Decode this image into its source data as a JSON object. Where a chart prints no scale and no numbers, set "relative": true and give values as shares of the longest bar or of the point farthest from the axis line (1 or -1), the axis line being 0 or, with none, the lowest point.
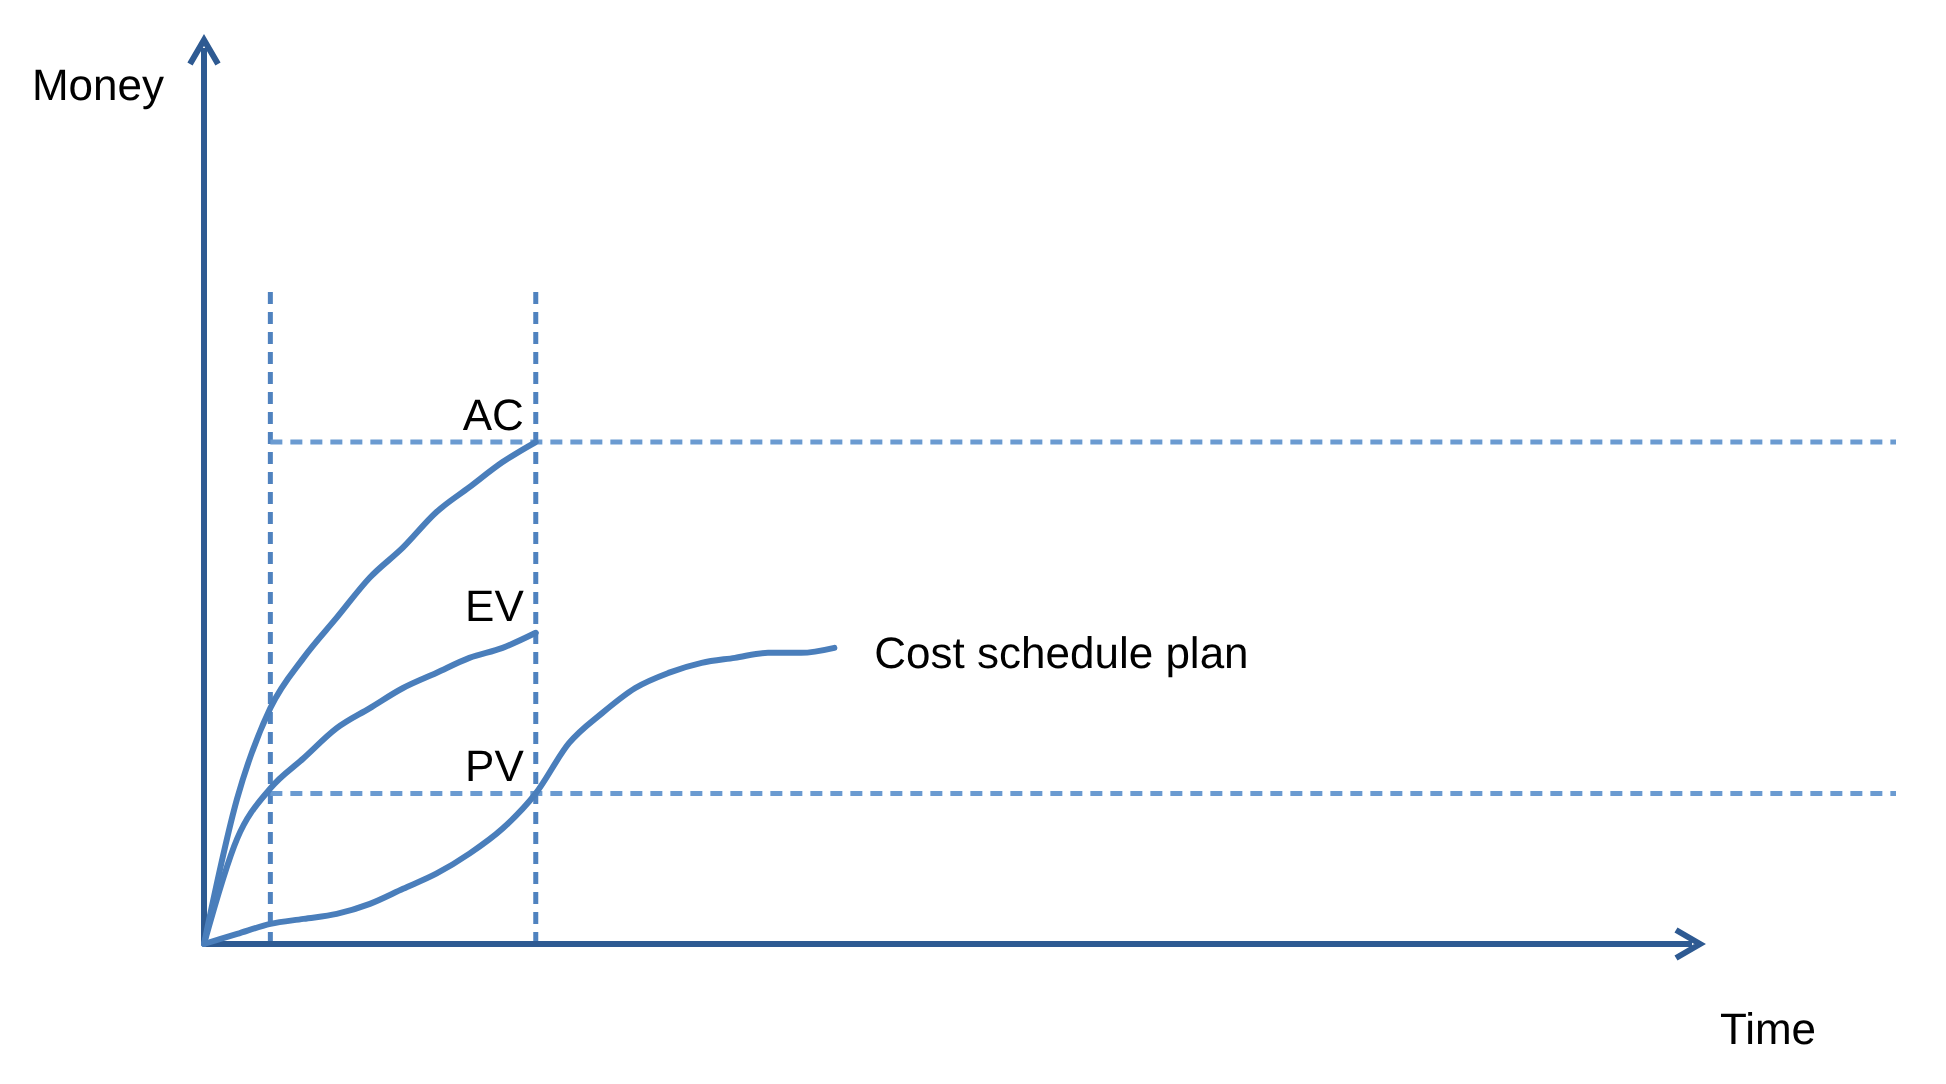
{
  "chart_data": {
    "type": "line",
    "relative": true,
    "xlabel": "Time",
    "line_style": "solid",
    "tick_labels": false,
    "categories": [
      null,
      null,
      null,
      null,
      null,
      null,
      null,
      null,
      null,
      null,
      null,
      null,
      null,
      null,
      null,
      null,
      null,
      null,
      null,
      null,
      null,
      null,
      null,
      null,
      null,
      null,
      null,
      null,
      null,
      null,
      null,
      null,
      null,
      null,
      null,
      null,
      null,
      null,
      null,
      null,
      null,
      null,
      null,
      null,
      null,
      null,
      null,
      null,
      null,
      null,
      null,
      null
    ],
    "series": [
      {
        "name": "AC",
        "color": "#4a7ebb",
        "values": [
          0,
          0.29,
          0.47,
          0.57,
          0.65,
          0.73,
          0.79,
          0.86,
          0.91,
          0.96,
          1,
          null,
          null,
          null,
          null,
          null,
          null,
          null,
          null,
          null,
          null,
          null,
          null,
          null,
          null,
          null,
          null,
          null,
          null,
          null,
          null,
          null,
          null,
          null,
          null,
          null,
          null,
          null,
          null,
          null,
          null,
          null,
          null,
          null,
          null,
          null,
          null,
          null,
          null,
          null,
          null,
          null
        ]
      },
      {
        "name": "EV",
        "color": "#4a7ebb",
        "values": [
          0,
          0.21,
          0.31,
          0.37,
          0.43,
          0.47,
          0.51,
          0.54,
          0.57,
          0.59,
          0.62,
          null,
          null,
          null,
          null,
          null,
          null,
          null,
          null,
          null,
          null,
          null,
          null,
          null,
          null,
          null,
          null,
          null,
          null,
          null,
          null,
          null,
          null,
          null,
          null,
          null,
          null,
          null,
          null,
          null,
          null,
          null,
          null,
          null,
          null,
          null,
          null,
          null,
          null,
          null,
          null,
          null
        ]
      },
      {
        "name": "Cost schedule plan",
        "color": "#4a7ebb",
        "values": [
          0,
          0.02,
          0.04,
          0.05,
          0.06,
          0.08,
          0.11,
          0.14,
          0.18,
          0.23,
          0.3,
          0.4,
          0.46,
          0.51,
          0.54,
          0.56,
          0.57,
          0.58,
          0.58,
          0.59,
          null,
          null,
          null,
          null,
          null,
          null,
          null,
          null,
          null,
          null,
          null,
          null,
          null,
          null,
          null,
          null,
          null,
          null,
          null,
          null,
          null,
          null,
          null,
          null,
          null,
          null,
          null,
          null,
          null,
          null,
          null,
          null
        ]
      }
    ],
    "ref_lines": [
      {
        "axis": "y",
        "value": 1,
        "color": "#6b9bd1",
        "line_style": "dashed"
      },
      {
        "axis": "y",
        "value": 0.3,
        "color": "#6b9bd1",
        "line_style": "dashed"
      }
    ],
    "annotations": [
      "Money",
      "PV"
    ]
  }
}
